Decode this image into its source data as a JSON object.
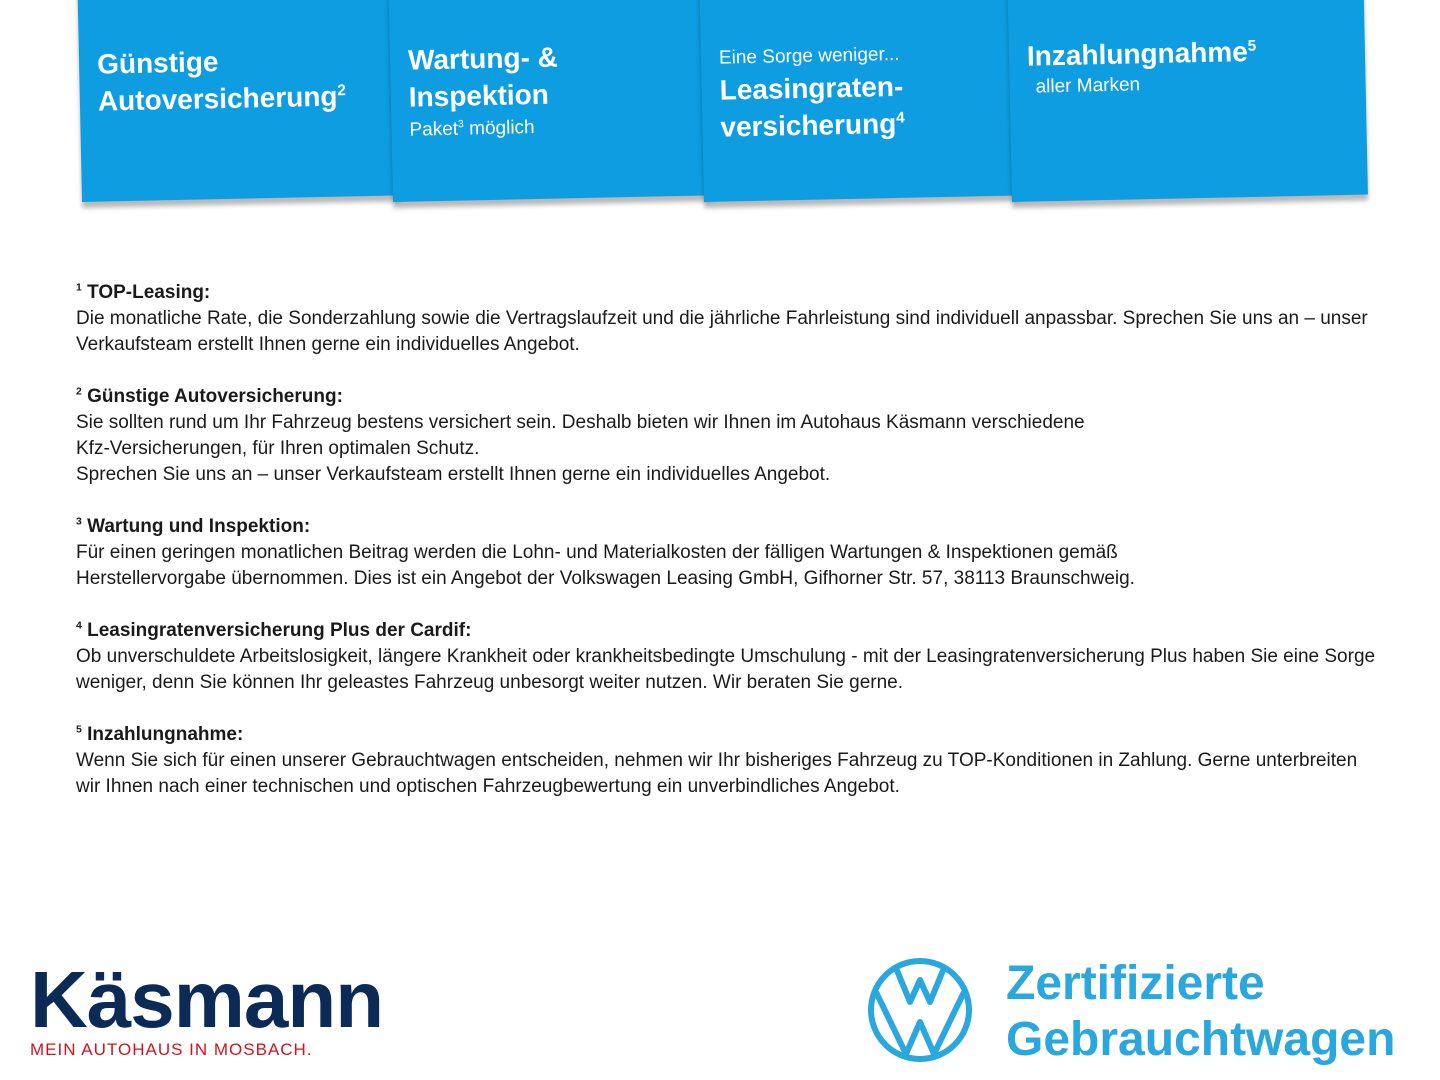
{
  "cards": [
    {
      "title_lines": [
        "Günstige",
        "Autoversicherung"
      ],
      "sup": "2",
      "pre": "",
      "sub": ""
    },
    {
      "title_lines": [
        "Wartung- &",
        "Inspektion"
      ],
      "sup": "",
      "pre": "",
      "sub": "Paket",
      "sub_sup": "3",
      "sub_rest": " möglich"
    },
    {
      "pre": "Eine Sorge weniger...",
      "title_lines": [
        "Leasingraten-",
        "versicherung"
      ],
      "sup": "4",
      "sub": ""
    },
    {
      "title_lines": [
        "Inzahlungnahme"
      ],
      "sup": "5",
      "pre": "",
      "sub": "aller Marken"
    }
  ],
  "notes": [
    {
      "num": "1",
      "title": "TOP-Leasing:",
      "text": "Die monatliche Rate, die Sonderzahlung sowie die Vertragslaufzeit und die jährliche Fahrleistung sind individuell anpassbar. Sprechen Sie uns an – unser Verkaufsteam erstellt Ihnen gerne ein individuelles Angebot."
    },
    {
      "num": "2",
      "title": "Günstige Autoversicherung:",
      "text": "Sie sollten rund um Ihr Fahrzeug bestens versichert sein. Deshalb bieten wir Ihnen im Autohaus Käsmann verschiedene\nKfz-Versicherungen, für Ihren optimalen Schutz.\nSprechen Sie uns an – unser Verkaufsteam erstellt Ihnen gerne ein individuelles Angebot."
    },
    {
      "num": "3",
      "title": "Wartung und Inspektion:",
      "text": "Für einen geringen monatlichen Beitrag werden die Lohn- und Materialkosten der fälligen Wartungen & Inspektionen gemäß\nHerstellervorgabe übernommen. Dies ist ein Angebot der Volkswagen Leasing GmbH, Gifhorner Str. 57, 38113 Braunschweig."
    },
    {
      "num": "4",
      "title": "Leasingratenversicherung Plus der Cardif:",
      "text": "Ob unverschuldete Arbeitslosigkeit, längere Krankheit oder krankheitsbedingte Umschulung - mit der Leasingratenversicherung Plus haben Sie eine Sorge weniger, denn Sie können Ihr geleastes Fahrzeug unbesorgt weiter nutzen. Wir beraten Sie gerne."
    },
    {
      "num": "5",
      "title": "Inzahlungnahme:",
      "text": "Wenn Sie sich für einen unserer Gebrauchtwagen entscheiden, nehmen wir Ihr bisheriges Fahrzeug zu TOP-Konditionen in Zahlung. Gerne unterbreiten wir Ihnen nach einer technischen und optischen Fahrzeugbewertung ein unverbindliches Angebot."
    }
  ],
  "dealer": {
    "name": "Käsmann",
    "tagline": "MEIN AUTOHAUS IN MOSBACH."
  },
  "vw": {
    "line1": "Zertifizierte",
    "line2": "Gebrauchtwagen"
  },
  "colors": {
    "card_blue": "#0e9de0",
    "dealer_navy": "#0b2a55",
    "dealer_red": "#d4121e",
    "vw_blue": "#2aa7dd"
  }
}
